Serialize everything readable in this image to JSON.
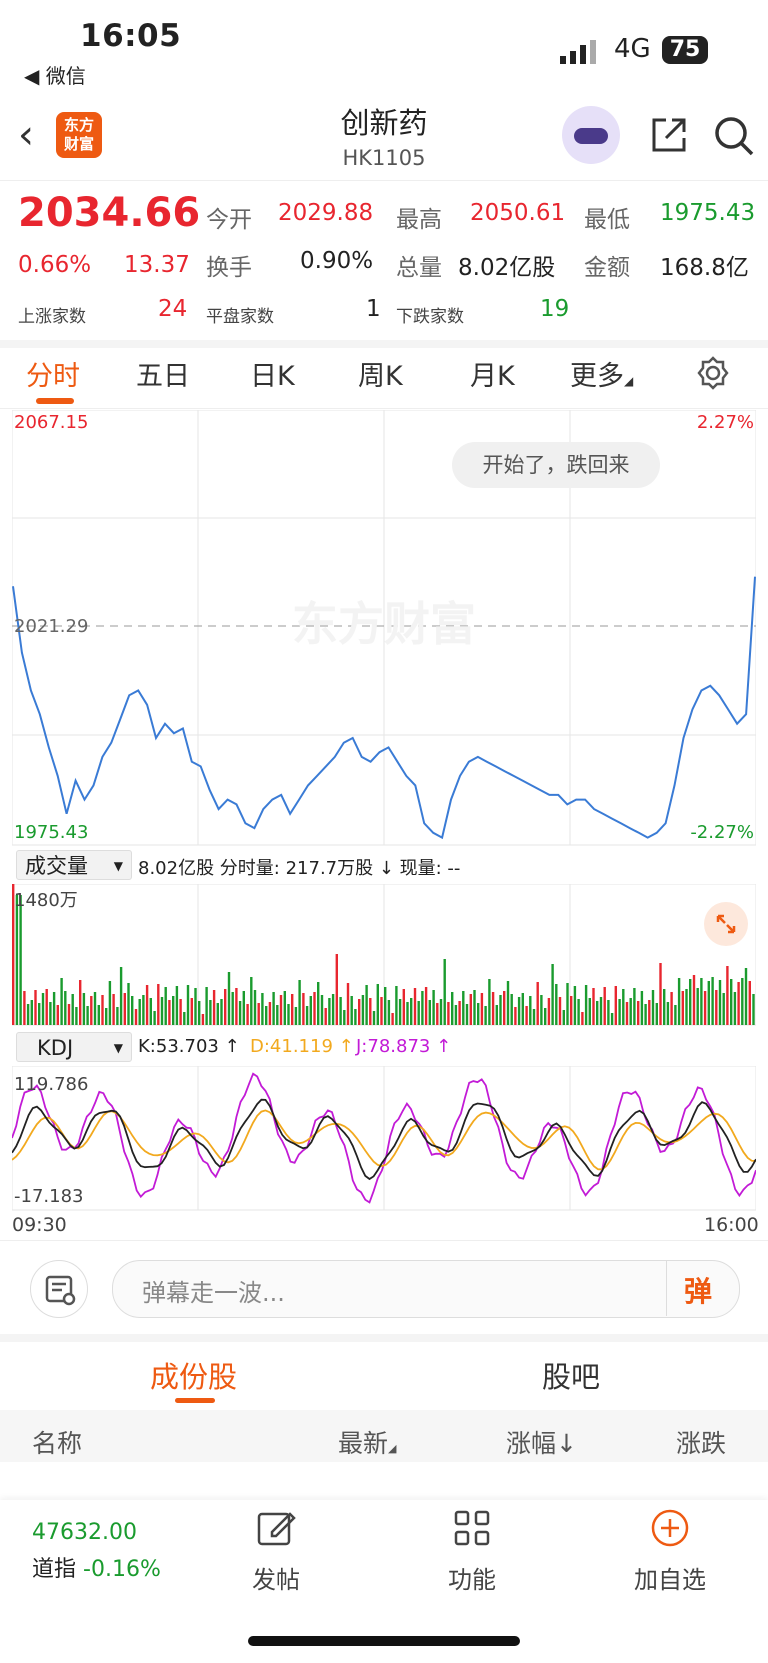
{
  "status": {
    "time": "16:05",
    "back_app": "◀ 微信",
    "network": "4G",
    "battery": "75"
  },
  "nav": {
    "logo_line1": "东方",
    "logo_line2": "财富",
    "title": "创新药",
    "code": "HK1105"
  },
  "quote": {
    "price": "2034.66",
    "pct": "0.66%",
    "change": "13.37",
    "open_label": "今开",
    "open": "2029.88",
    "high_label": "最高",
    "high": "2050.61",
    "low_label": "最低",
    "low": "1975.43",
    "turnover_label": "换手",
    "turnover": "0.90%",
    "volume_label": "总量",
    "volume": "8.02亿股",
    "amount_label": "金额",
    "amount": "168.8亿",
    "up_label": "上涨家数",
    "up": "24",
    "flat_label": "平盘家数",
    "flat": "1",
    "down_label": "下跌家数",
    "down": "19"
  },
  "tabs": [
    {
      "label": "分时"
    },
    {
      "label": "五日"
    },
    {
      "label": "日K"
    },
    {
      "label": "周K"
    },
    {
      "label": "月K"
    },
    {
      "label": "更多"
    }
  ],
  "colors": {
    "accent": "#ee5a12",
    "up": "#e8262f",
    "down": "#1a9b2e",
    "line": "#3a7bd5"
  },
  "chart": {
    "y_max": "2067.15",
    "y_mid": "2021.29",
    "y_min": "1975.43",
    "pct_max": "2.27%",
    "pct_min": "-2.27%",
    "bubble": "开始了，跌回来",
    "watermark": "东方财富",
    "vol_selector": "成交量",
    "vol_info": "8.02亿股 分时量: 217.7万股 ↓ 现量: --",
    "vol_max": "1480万",
    "kdj_selector": "KDJ",
    "kdj_k": "K:53.703 ↑",
    "kdj_d": "D:41.119 ↑",
    "kdj_j": "J:78.873 ↑",
    "kdj_max": "119.786",
    "kdj_min": "-17.183",
    "time_start": "09:30",
    "time_end": "16:00"
  },
  "chart_data": {
    "type": "line",
    "title": "",
    "ylim": [
      1975.43,
      2067.15
    ],
    "prev_close": 2021.29,
    "series": [
      {
        "values": [
          2030,
          2016,
          2008,
          2003,
          1996,
          1990,
          1982,
          1989,
          1985,
          1988,
          1994,
          1997,
          2002,
          2007,
          2008,
          2005,
          1998,
          2001,
          1999,
          2000,
          1993,
          1992,
          1987,
          1983,
          1985,
          1984,
          1980,
          1979,
          1983,
          1985,
          1986,
          1982,
          1985,
          1988,
          1990,
          1992,
          1994,
          1997,
          1998,
          1994,
          1993,
          1995,
          1996,
          1993,
          1990,
          1988,
          1980,
          1978,
          1977,
          1985,
          1990,
          1993,
          1994,
          1993,
          1992,
          1991,
          1990,
          1989,
          1988,
          1987,
          1986,
          1986,
          1984,
          1985,
          1985,
          1983,
          1982,
          1981,
          1980,
          1979,
          1978,
          1977,
          1978,
          1980,
          1988,
          1998,
          2004,
          2008,
          2009,
          2007,
          2004,
          2001,
          2003,
          2032
        ]
      }
    ]
  },
  "comment": {
    "placeholder": "弹幕走一波...",
    "send": "弹"
  },
  "sections": [
    {
      "label": "成份股"
    },
    {
      "label": "股吧"
    }
  ],
  "table": {
    "col_name": "名称",
    "col_latest": "最新",
    "col_pct": "涨幅↓",
    "col_change": "涨跌"
  },
  "bottom": {
    "index_value": "47632.00",
    "index_name": "道指",
    "index_pct": "-0.16%",
    "post": "发帖",
    "func": "功能",
    "add": "加自选"
  }
}
